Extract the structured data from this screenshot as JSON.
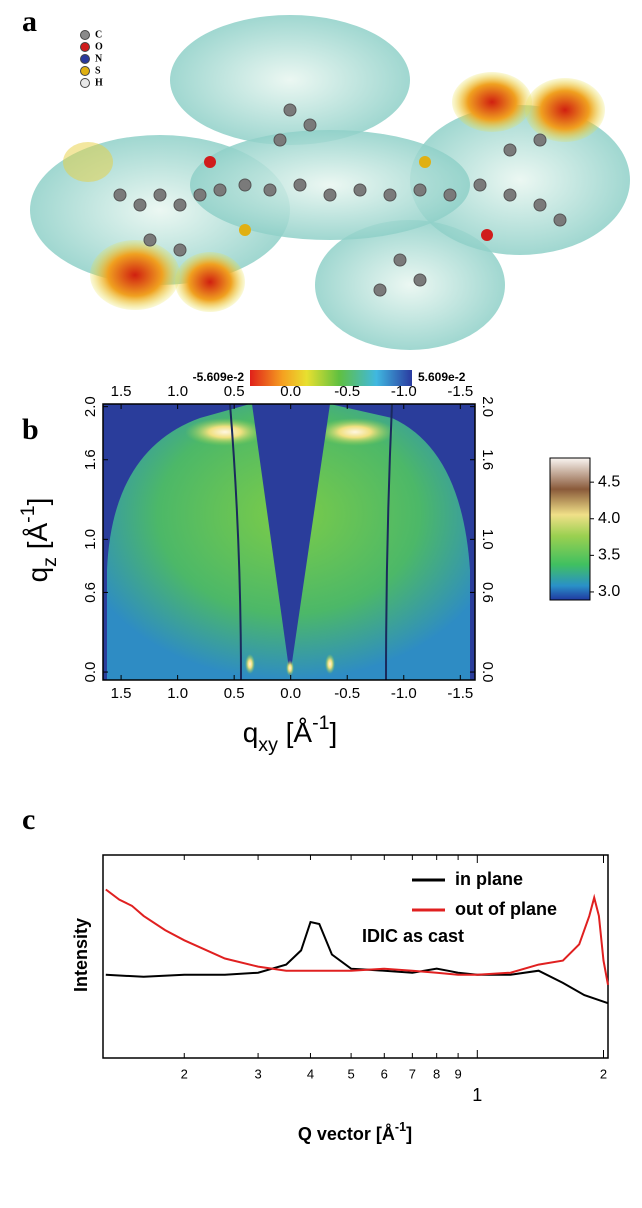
{
  "figure": {
    "panel_labels": [
      "a",
      "b",
      "c"
    ],
    "molecule_panel": {
      "legend": [
        "C",
        "O",
        "N",
        "S",
        "H"
      ],
      "legend_colors": [
        "#8a8a8a",
        "#d01c1c",
        "#2a3a9c",
        "#e0b012",
        "#e8e8e8"
      ],
      "colorbar_labels": [
        "-5.609e-2",
        "5.609e-2"
      ]
    }
  },
  "chart_data": [
    {
      "type": "heatmap",
      "xlabel": {
        "text": "q",
        "sub": "xy",
        "unit": " [Å",
        "sup": "-1",
        "end": "]"
      },
      "ylabel": {
        "text": "q",
        "sub": "z",
        "unit": " [Å",
        "sup": "-1",
        "end": "]"
      },
      "xlim": [
        1.66,
        -1.63
      ],
      "ylim": [
        -0.06,
        2.02
      ],
      "xticks": [
        1.5,
        {
          "value": 1,
          "label": "1.0"
        },
        0.5,
        {
          "value": 0,
          "label": "0.0"
        },
        -0.5,
        {
          "value": -1,
          "label": "-1.0"
        },
        -1.5
      ],
      "yticks": [
        {
          "value": 0,
          "label": "0.0"
        },
        0.6,
        {
          "value": 1,
          "label": "1.0"
        },
        1.6,
        {
          "value": 2,
          "label": "2.0"
        }
      ],
      "colorbar": {
        "zlim": [
          2.89,
          4.83
        ],
        "ticks": [
          {
            "value": 3,
            "label": "3.0"
          },
          3.5,
          {
            "value": 4,
            "label": "4.0"
          },
          4.5
        ]
      }
    },
    {
      "type": "line",
      "ylabel": "Intensity",
      "xlabel": {
        "text": "Q vector [Å",
        "sup": "-1",
        "end": "]"
      },
      "annotation": "IDIC as cast",
      "xscale": "log",
      "xlim": [
        0.128,
        2.05
      ],
      "ylim": [
        0,
        100
      ],
      "xticks": [
        {
          "value": 0.2,
          "label": "2"
        },
        {
          "value": 0.3,
          "label": "3"
        },
        {
          "value": 0.4,
          "label": "4"
        },
        {
          "value": 0.5,
          "label": "5"
        },
        {
          "value": 0.6,
          "label": "6"
        },
        {
          "value": 0.7,
          "label": "7"
        },
        {
          "value": 0.8,
          "label": "8"
        },
        {
          "value": 0.9,
          "label": "9"
        },
        1,
        2
      ],
      "legend": "upper right",
      "series": [
        {
          "name": "in plane",
          "color": "#000000",
          "x": [
            0.13,
            0.16,
            0.2,
            0.25,
            0.3,
            0.35,
            0.38,
            0.4,
            0.42,
            0.45,
            0.5,
            0.6,
            0.7,
            0.8,
            0.85,
            0.9,
            1.0,
            1.2,
            1.4,
            1.6,
            1.8,
            2.05
          ],
          "values": [
            41,
            40,
            41,
            41,
            42,
            46,
            53,
            67,
            66,
            51,
            44,
            43,
            42,
            44,
            43,
            42,
            41,
            41,
            43,
            37,
            31,
            27
          ]
        },
        {
          "name": "out of plane",
          "color": "#e02020",
          "x": [
            0.13,
            0.14,
            0.15,
            0.16,
            0.18,
            0.2,
            0.25,
            0.3,
            0.35,
            0.4,
            0.5,
            0.6,
            0.7,
            0.8,
            0.9,
            1.0,
            1.2,
            1.4,
            1.6,
            1.75,
            1.85,
            1.9,
            1.95,
            2.0,
            2.05
          ],
          "values": [
            83,
            78,
            75,
            70,
            63,
            58,
            49,
            45,
            43,
            43,
            43,
            44,
            43,
            42,
            41,
            41,
            42,
            46,
            48,
            56,
            70,
            79,
            70,
            48,
            36
          ]
        }
      ]
    }
  ]
}
